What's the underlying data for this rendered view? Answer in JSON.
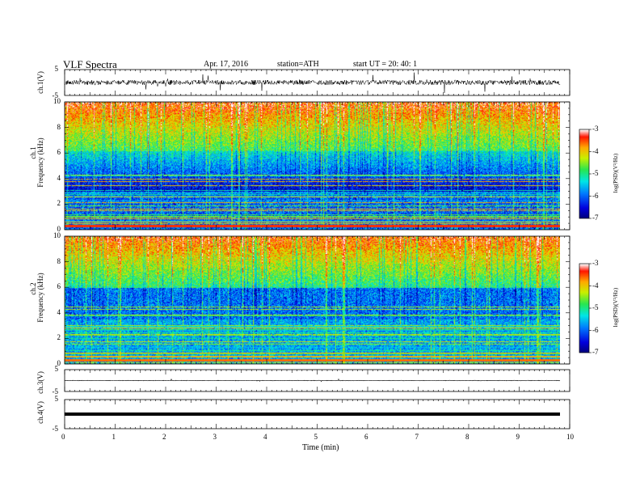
{
  "header": {
    "title": "VLF Spectra",
    "date": "Apr. 17, 2016",
    "station": "station=ATH",
    "start": "start UT =  20: 40: 1"
  },
  "chart_data": [
    {
      "type": "line",
      "name": "ch1-waveform",
      "ylabel": "ch.1(V)",
      "ylim": [
        -5,
        5
      ],
      "yticks": [
        "5",
        "-5"
      ]
    },
    {
      "type": "heatmap",
      "name": "ch1-spectrogram",
      "ylabel_channel": "ch.1",
      "ylabel": "Frequency (kHz)",
      "ylim": [
        0,
        10
      ],
      "yticks": [
        "0",
        "2",
        "4",
        "6",
        "8",
        "10"
      ],
      "colorbar": {
        "label": "log(PSD)(V²/Hz)",
        "range": [
          -7,
          -3
        ],
        "ticks": [
          "-3",
          "-4",
          "-5",
          "-6",
          "-7"
        ]
      }
    },
    {
      "type": "heatmap",
      "name": "ch2-spectrogram",
      "ylabel_channel": "ch.2",
      "ylabel": "Frequency (kHz)",
      "ylim": [
        0,
        10
      ],
      "yticks": [
        "0",
        "2",
        "4",
        "6",
        "8",
        "10"
      ],
      "colorbar": {
        "label": "log(PSD)(V²/Hz)",
        "range": [
          -7,
          -3
        ],
        "ticks": [
          "-3",
          "-4",
          "-5",
          "-6",
          "-7"
        ]
      }
    },
    {
      "type": "line",
      "name": "ch3-waveform",
      "ylabel": "ch.3(V)",
      "ylim": [
        -5,
        5
      ],
      "yticks": [
        "5",
        "-5"
      ]
    },
    {
      "type": "line",
      "name": "ch4-waveform",
      "ylabel": "ch.4(V)",
      "ylim": [
        -5,
        5
      ],
      "yticks": [
        "5",
        "-5"
      ]
    }
  ],
  "xaxis": {
    "label": "Time (min)",
    "range": [
      0,
      10
    ],
    "ticks": [
      "0",
      "1",
      "2",
      "3",
      "4",
      "5",
      "6",
      "7",
      "8",
      "9",
      "10"
    ]
  }
}
